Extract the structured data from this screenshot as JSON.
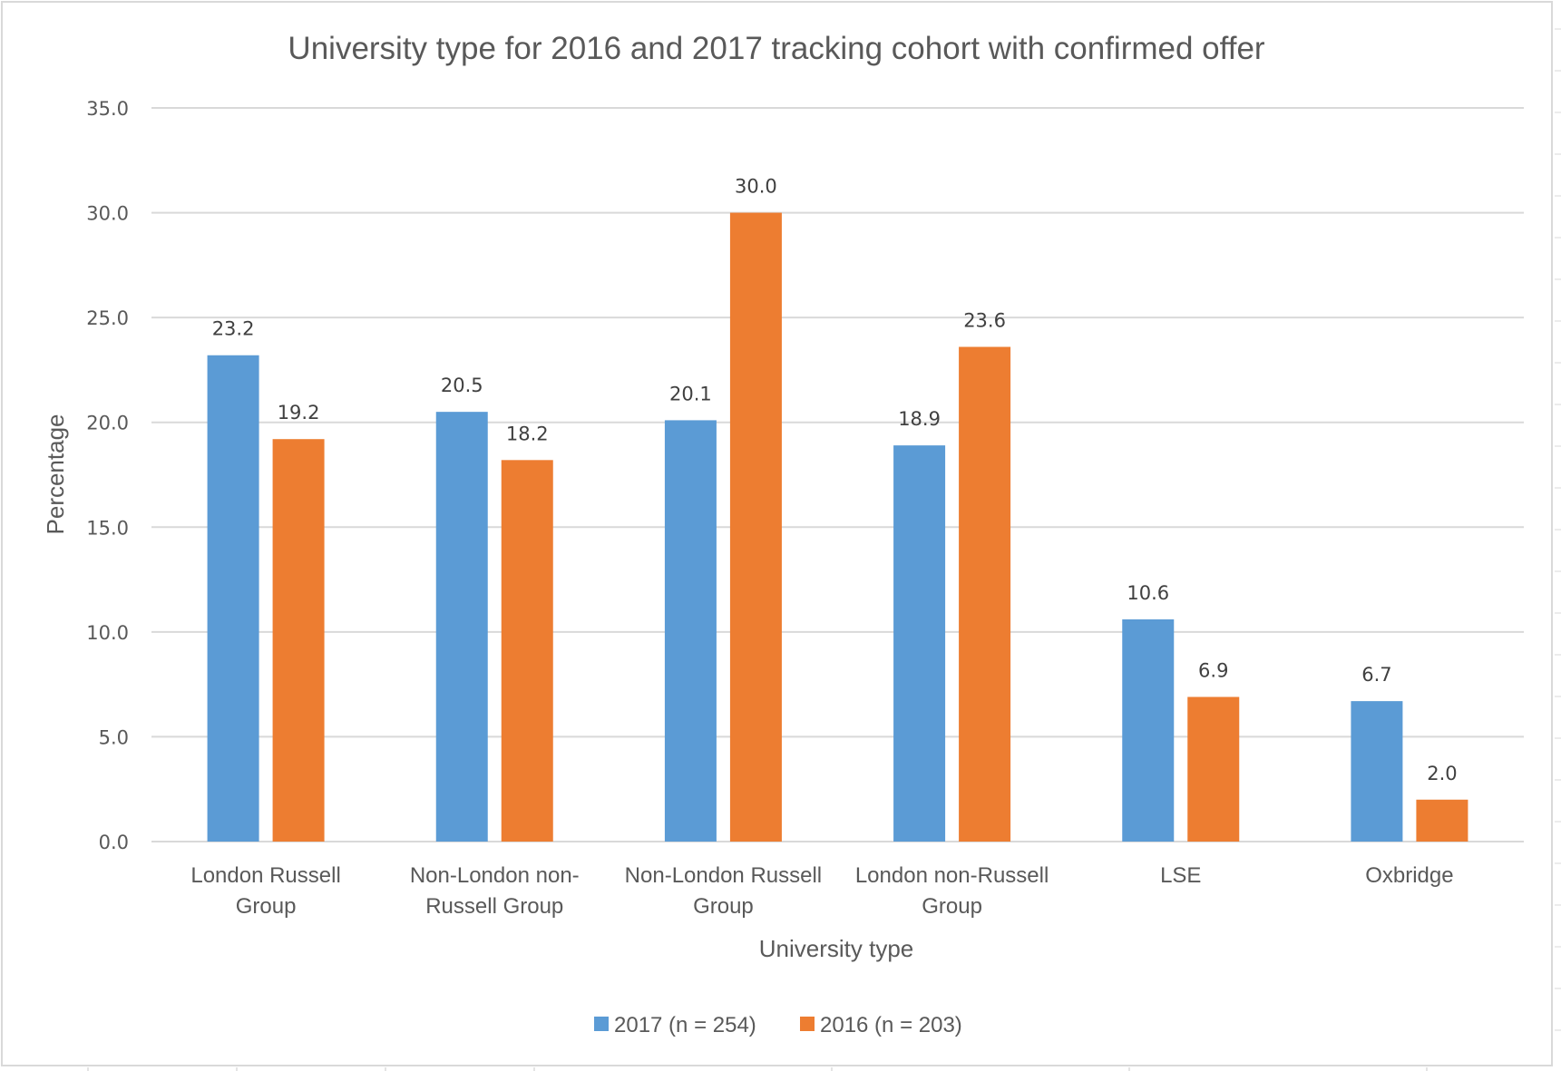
{
  "chart_data": {
    "type": "bar",
    "title": "University type for 2016 and 2017 tracking cohort with confirmed offer",
    "xlabel": "University type",
    "ylabel": "Percentage",
    "ylim": [
      0,
      35
    ],
    "yticks": [
      "0.0",
      "5.0",
      "10.0",
      "15.0",
      "20.0",
      "25.0",
      "30.0",
      "35.0"
    ],
    "ytick_values": [
      0,
      5,
      10,
      15,
      20,
      25,
      30,
      35
    ],
    "grid": true,
    "legend_position": "bottom",
    "categories": [
      [
        "London Russell",
        "Group"
      ],
      [
        "Non-London non-",
        "Russell Group"
      ],
      [
        "Non-London Russell",
        "Group"
      ],
      [
        "London non-Russell",
        "Group"
      ],
      [
        "LSE"
      ],
      [
        "Oxbridge"
      ]
    ],
    "series": [
      {
        "name": "2017 (n = 254)",
        "color": "#5b9bd5",
        "values": [
          23.2,
          20.5,
          20.1,
          18.9,
          10.6,
          6.7
        ],
        "labels": [
          "23.2",
          "20.5",
          "20.1",
          "18.9",
          "10.6",
          "6.7"
        ]
      },
      {
        "name": "2016 (n = 203)",
        "color": "#ed7d31",
        "values": [
          19.2,
          18.2,
          30.0,
          23.6,
          6.9,
          2.0
        ],
        "labels": [
          "19.2",
          "18.2",
          "30.0",
          "23.6",
          "6.9",
          "2.0"
        ]
      }
    ]
  },
  "colors": {
    "gridline": "#d9d9d9",
    "text": "#595959",
    "frame": "#d9d9d9"
  }
}
